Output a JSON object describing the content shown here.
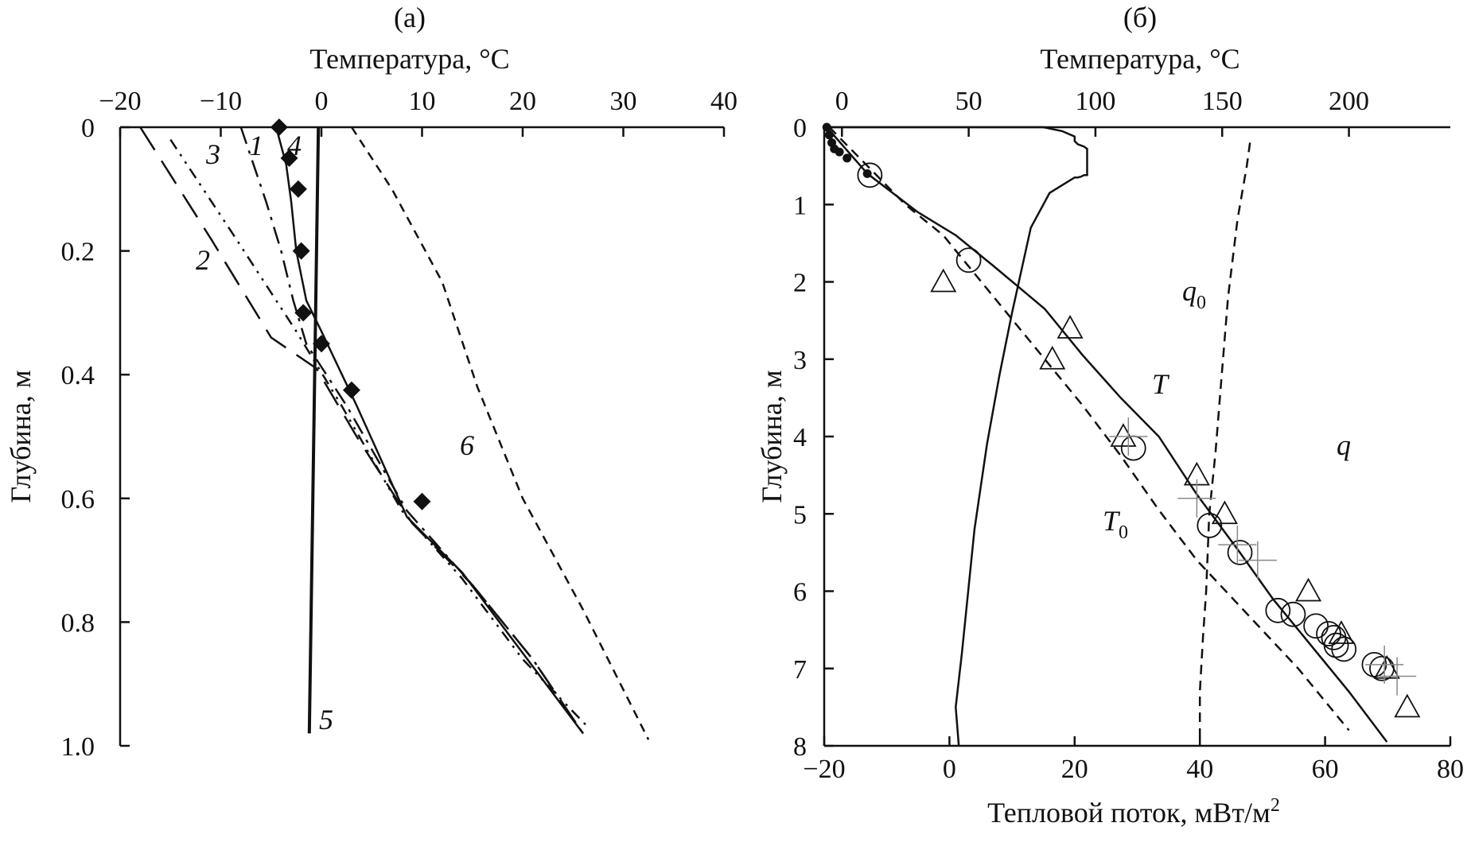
{
  "chart_data": [
    {
      "type": "line",
      "panel_label": "(а)",
      "top_axis_label": "Температура, °С",
      "y_label": "Глубина, м",
      "xlim": [
        -20,
        40
      ],
      "ylim": [
        0,
        1.0
      ],
      "x_ticks": [
        "−20",
        "−10",
        "0",
        "10",
        "20",
        "30",
        "40"
      ],
      "y_ticks": [
        "0",
        "0.2",
        "0.4",
        "0.6",
        "0.8",
        "1.0"
      ],
      "series": [
        {
          "name": "1",
          "style": "solid-diamond-markers",
          "x": [
            -4.2,
            -3.2,
            -2.3,
            -2.0,
            -1.8,
            0.0,
            3.0,
            10.0
          ],
          "y": [
            0.0,
            0.05,
            0.1,
            0.2,
            0.3,
            0.35,
            0.425,
            0.605
          ]
        },
        {
          "name": "1-fit",
          "style": "solid",
          "x": [
            -4.5,
            -3.5,
            -3.0,
            -2.5,
            -1.5,
            0.0,
            3.5,
            8.5,
            14.0,
            20.0,
            26.0
          ],
          "y": [
            0.0,
            0.06,
            0.12,
            0.2,
            0.28,
            0.33,
            0.45,
            0.63,
            0.72,
            0.85,
            0.98
          ]
        },
        {
          "name": "2",
          "style": "long-dash",
          "x": [
            -18.0,
            -11.0,
            -5.0,
            -0.5,
            3.5,
            9.0,
            15.0,
            21.0,
            26.0
          ],
          "y": [
            0.0,
            0.18,
            0.34,
            0.39,
            0.5,
            0.64,
            0.74,
            0.86,
            0.98
          ]
        },
        {
          "name": "3",
          "style": "dash-dot-dot",
          "x": [
            -15.0,
            -8.5,
            -2.5,
            2.0,
            8.0,
            14.0,
            20.0,
            26.5
          ],
          "y": [
            0.02,
            0.18,
            0.33,
            0.45,
            0.62,
            0.73,
            0.86,
            0.97
          ]
        },
        {
          "name": "4",
          "style": "dash-dot",
          "x": [
            -8.0,
            -5.5,
            -4.0,
            -2.8,
            -1.5,
            2.5,
            8.5,
            15.0,
            21.0,
            26.0
          ],
          "y": [
            0.0,
            0.12,
            0.2,
            0.28,
            0.35,
            0.45,
            0.62,
            0.74,
            0.86,
            0.98
          ]
        },
        {
          "name": "5",
          "style": "solid",
          "x": [
            -0.3,
            -1.2
          ],
          "y": [
            0.0,
            0.98
          ]
        },
        {
          "name": "6",
          "style": "short-dash",
          "x": [
            3.0,
            7.0,
            12.0,
            15.5,
            20.0,
            26.0,
            32.5
          ],
          "y": [
            0.0,
            0.1,
            0.25,
            0.42,
            0.6,
            0.78,
            0.99
          ]
        }
      ],
      "annotations": [
        "1",
        "2",
        "3",
        "4",
        "5",
        "6"
      ]
    },
    {
      "type": "line",
      "panel_label": "(б)",
      "top_axis_label": "Температура, °С",
      "bottom_axis_label": "Тепловой поток, мВт/м",
      "bottom_axis_superscript": "2",
      "y_label": "Глубина, м",
      "top_xlim": [
        -7,
        240
      ],
      "bottom_xlim": [
        -20,
        80
      ],
      "ylim": [
        0,
        8
      ],
      "top_ticks": [
        "0",
        "50",
        "100",
        "150",
        "200"
      ],
      "bottom_ticks": [
        "−20",
        "0",
        "20",
        "40",
        "60",
        "80"
      ],
      "y_ticks": [
        "0",
        "1",
        "2",
        "3",
        "4",
        "5",
        "6",
        "7",
        "8"
      ],
      "series": [
        {
          "name": "T",
          "axis": "temperature",
          "style": "solid",
          "x": [
            -6,
            10,
            30,
            45,
            60,
            80,
            95,
            110,
            125,
            140,
            157,
            170,
            185,
            200,
            215
          ],
          "y": [
            0.0,
            0.6,
            1.1,
            1.4,
            1.8,
            2.35,
            2.95,
            3.5,
            4.0,
            4.75,
            5.5,
            6.1,
            6.7,
            7.3,
            7.95
          ]
        },
        {
          "name": "T0",
          "axis": "temperature",
          "style": "dashed",
          "x": [
            -5,
            10,
            25,
            40,
            55,
            75,
            95,
            110,
            125,
            140,
            160,
            180,
            200
          ],
          "y": [
            0.0,
            0.5,
            1.0,
            1.4,
            2.0,
            2.8,
            3.6,
            4.25,
            4.95,
            5.6,
            6.3,
            7.0,
            7.8
          ]
        },
        {
          "name": "q",
          "axis": "heat-flux",
          "style": "solid",
          "x": [
            -20,
            15,
            18,
            20,
            20,
            20.5,
            21.5,
            22,
            22,
            22,
            22,
            21.5,
            21,
            20.5,
            20,
            19,
            16,
            13,
            10,
            8,
            6,
            4,
            3,
            2,
            1,
            1.5
          ],
          "y": [
            0.0,
            0.0,
            0.05,
            0.12,
            0.18,
            0.22,
            0.25,
            0.28,
            0.32,
            0.5,
            0.62,
            0.62,
            0.64,
            0.65,
            0.65,
            0.7,
            0.85,
            1.3,
            2.4,
            3.2,
            4.1,
            5.2,
            6.0,
            6.8,
            7.5,
            8.0
          ]
        },
        {
          "name": "q0",
          "axis": "heat-flux",
          "style": "dashed",
          "x": [
            48,
            47.5,
            46,
            44.5,
            43.5,
            42.5,
            41.5,
            41,
            40.5,
            40,
            40
          ],
          "y": [
            0.2,
            0.5,
            1.2,
            2.2,
            3.2,
            4.2,
            5.0,
            6.0,
            6.6,
            7.3,
            8.0
          ]
        },
        {
          "name": "circles",
          "axis": "temperature",
          "style": "open-circle",
          "x": [
            11,
            50,
            115,
            145,
            157,
            172,
            178,
            187,
            192,
            194,
            195,
            198,
            210,
            213
          ],
          "y": [
            0.62,
            1.72,
            4.15,
            5.15,
            5.5,
            6.25,
            6.3,
            6.45,
            6.55,
            6.6,
            6.7,
            6.75,
            6.95,
            7.0
          ]
        },
        {
          "name": "triangles",
          "axis": "temperature",
          "style": "open-triangle",
          "x": [
            40,
            90,
            83,
            111,
            140,
            151,
            184,
            197,
            215,
            223
          ],
          "y": [
            2.0,
            2.6,
            3.0,
            4.0,
            4.5,
            5.0,
            6.0,
            6.55,
            7.0,
            7.5
          ]
        },
        {
          "name": "crosses",
          "axis": "temperature",
          "style": "plus",
          "x": [
            113,
            140,
            156,
            164,
            214,
            219
          ],
          "y": [
            4.0,
            4.8,
            5.4,
            5.6,
            6.95,
            7.1
          ]
        },
        {
          "name": "dots",
          "axis": "temperature",
          "style": "filled-dot",
          "x": [
            -6,
            -5,
            -4,
            -3,
            -1,
            2,
            10
          ],
          "y": [
            0.0,
            0.1,
            0.2,
            0.28,
            0.32,
            0.4,
            0.6
          ]
        }
      ],
      "annotations": [
        "T",
        "T0",
        "q",
        "q0"
      ]
    }
  ],
  "labels": {
    "panel_a": "(а)",
    "panel_b": "(б)",
    "top_axis_a": "Температура, °С",
    "top_axis_b": "Температура, °С",
    "y_axis_a": "Глубина, м",
    "y_axis_b": "Глубина, м",
    "bottom_axis_b": "Тепловой поток, мВт/м",
    "bottom_axis_b_sup": "2",
    "curve_1": "1",
    "curve_2": "2",
    "curve_3": "3",
    "curve_4": "4",
    "curve_5": "5",
    "curve_6": "6",
    "curve_T": "T",
    "curve_T0": "T",
    "curve_T0_sub": "0",
    "curve_q": "q",
    "curve_q0": "q",
    "curve_q0_sub": "0"
  }
}
